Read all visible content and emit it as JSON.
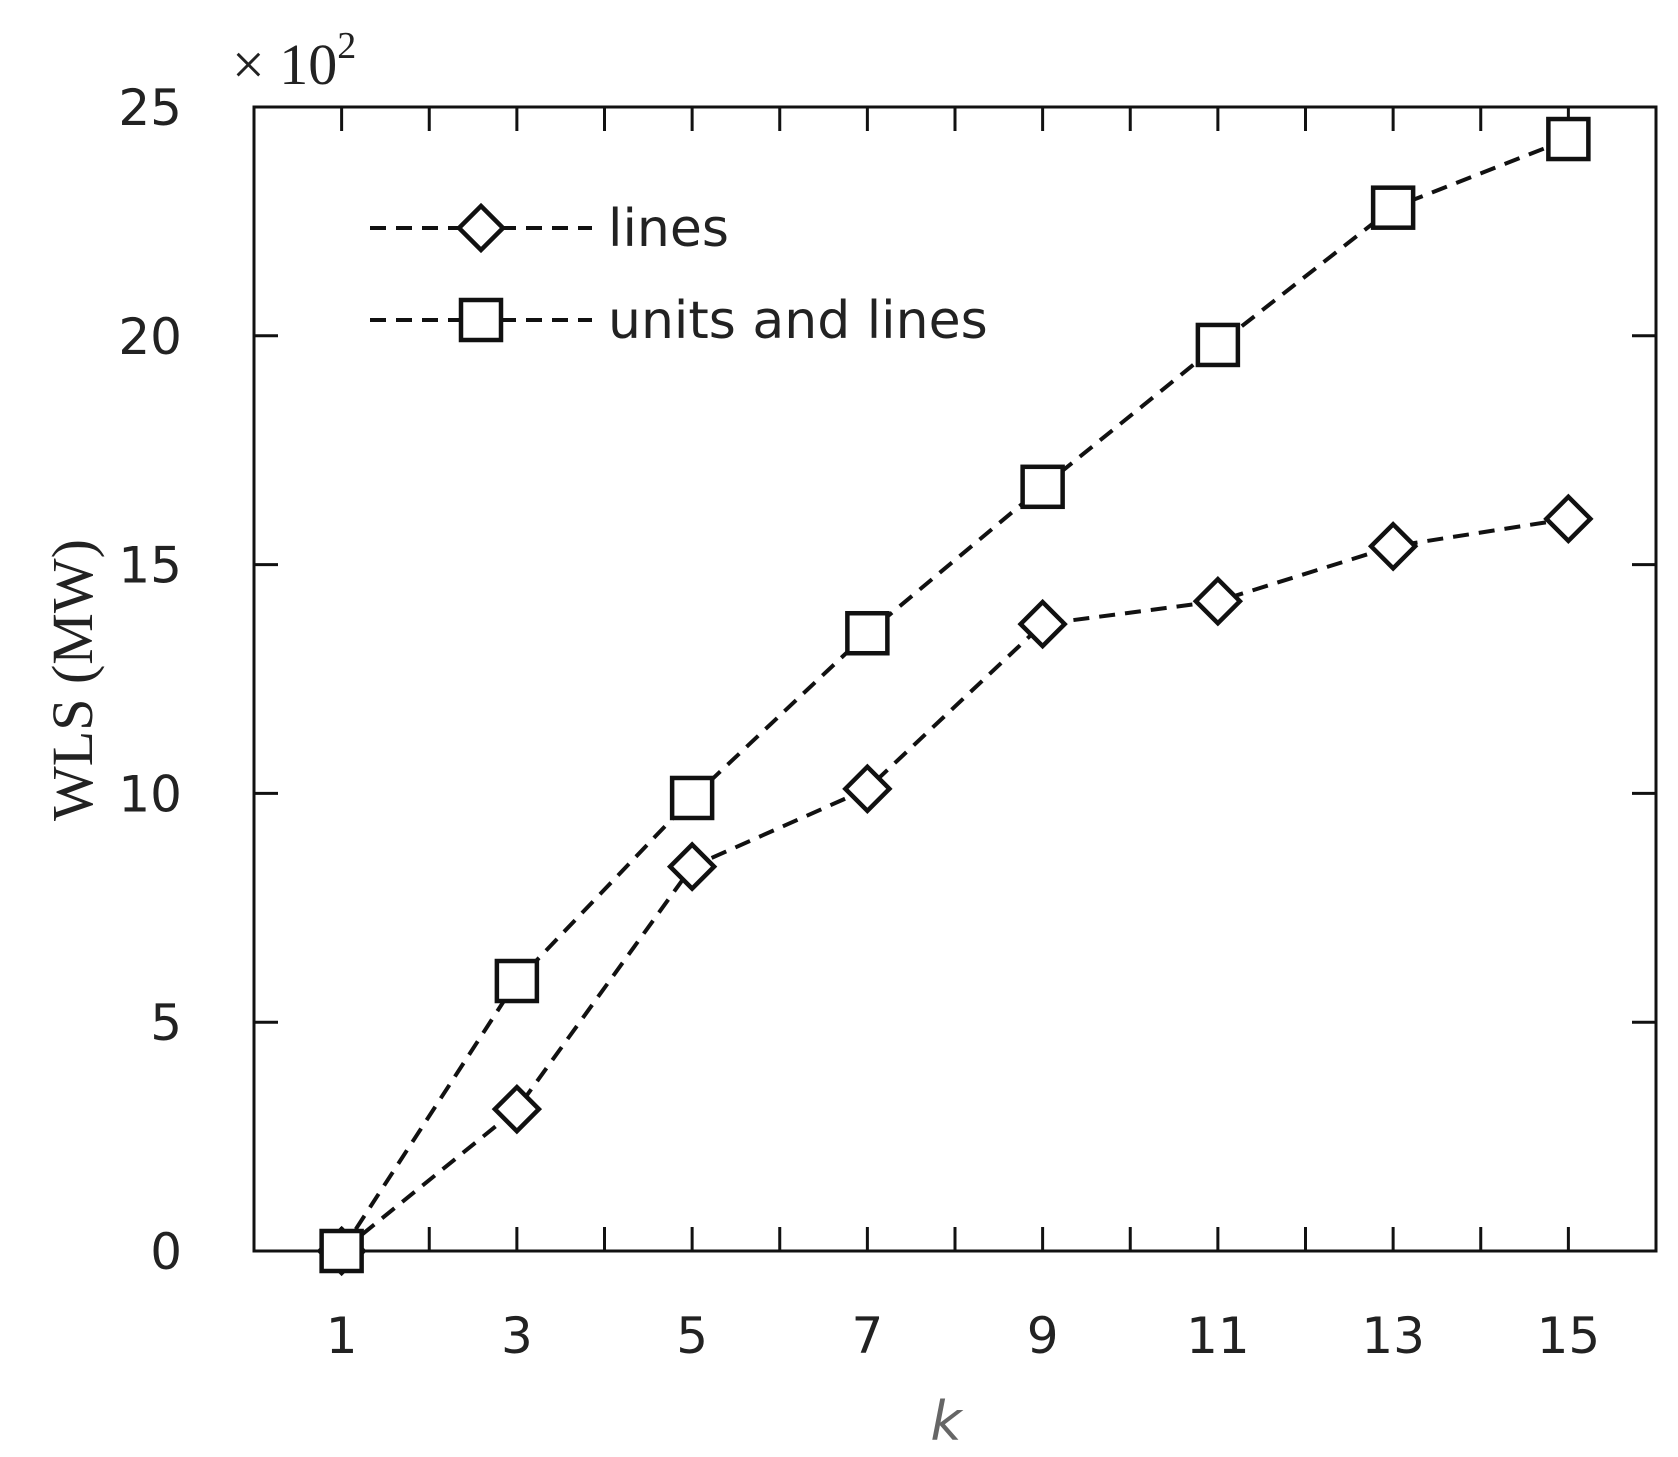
{
  "chart_data": {
    "type": "line",
    "title": "",
    "xlabel": "k",
    "ylabel": "WLS (MW)",
    "y_scale_note": "× 10",
    "y_scale_exponent": "2",
    "x": [
      1,
      3,
      5,
      7,
      9,
      11,
      13,
      15
    ],
    "xticks": [
      "1",
      "3",
      "5",
      "7",
      "9",
      "11",
      "13",
      "15"
    ],
    "xlim": [
      0,
      16
    ],
    "yticks": [
      "0",
      "5",
      "10",
      "15",
      "20",
      "25"
    ],
    "ylim": [
      0,
      25
    ],
    "grid": false,
    "legend_position": "top-left",
    "series": [
      {
        "name": "lines",
        "marker": "diamond",
        "values": [
          0,
          3.1,
          8.4,
          10.1,
          13.7,
          14.2,
          15.4,
          16.0
        ]
      },
      {
        "name": "units and lines",
        "marker": "square",
        "values": [
          0,
          5.9,
          9.9,
          13.5,
          16.7,
          19.8,
          22.8,
          24.3
        ]
      }
    ]
  }
}
